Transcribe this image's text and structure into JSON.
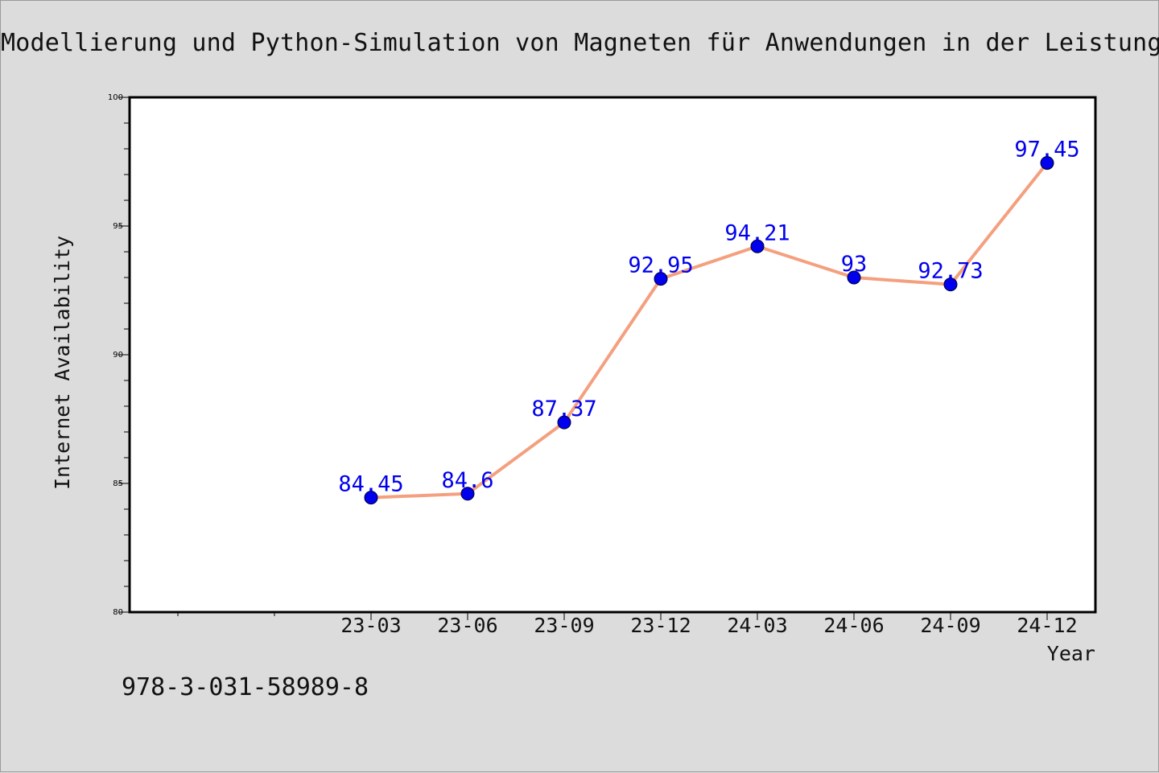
{
  "title": "Modellierung und Python-Simulation von Magneten für Anwendungen in der Leistungs",
  "footer_text": "978-3-031-58989-8",
  "colors": {
    "background": "#dcdcdc",
    "plot_background": "#ffffff",
    "line": "#f4a07f",
    "marker": "#0000ee",
    "data_label": "#0000ee"
  },
  "chart_data": {
    "type": "line",
    "title": "Modellierung und Python-Simulation von Magneten für Anwendungen in der Leistungs",
    "xlabel": "Year",
    "ylabel": "Internet Availability",
    "categories": [
      "23-03",
      "23-06",
      "23-09",
      "23-12",
      "24-03",
      "24-06",
      "24-09",
      "24-12"
    ],
    "series": [
      {
        "values": [
          84.45,
          84.6,
          87.37,
          92.95,
          94.21,
          93,
          92.73,
          97.45
        ]
      }
    ],
    "data_labels": [
      "84.45",
      "84.6",
      "87.37",
      "92.95",
      "94.21",
      "93",
      "92.73",
      "97.45"
    ],
    "ylim": [
      80,
      100
    ],
    "yticks": [
      "80",
      "85",
      "90",
      "95",
      "100"
    ],
    "grid": false,
    "legend": "none"
  }
}
